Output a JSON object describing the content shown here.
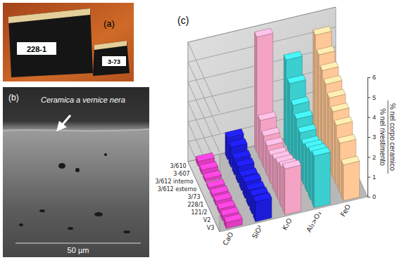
{
  "chart_data": {
    "type": "bar",
    "title": "(c)",
    "ylabel": {
      "numerator": "% nel rivestimento",
      "denominator": "% nel corpo ceramico"
    },
    "categories": [
      "3/610",
      "3-607",
      "3/612 interno",
      "3/612 esterno",
      "3/73",
      "228/1",
      "121/2",
      "V2",
      "V3"
    ],
    "series": [
      {
        "name": "CaO",
        "color": "#e03cc0",
        "values": [
          0.25,
          0.2,
          0.15,
          0.1,
          0.15,
          0.2,
          0.2,
          0.25,
          0.3
        ]
      },
      {
        "name": "SiO²",
        "color": "#1c1cd8",
        "values": [
          1.1,
          1.0,
          0.8,
          0.8,
          0.7,
          0.8,
          0.8,
          0.9,
          1.0
        ]
      },
      {
        "name": "K₂O",
        "color": "#f4a3c4",
        "values": [
          5.8,
          2.0,
          1.6,
          1.5,
          1.4,
          1.6,
          1.8,
          2.0,
          2.3
        ]
      },
      {
        "name": "Al₂>O₃",
        "color": "#3ccfd0",
        "values": [
          4.3,
          3.5,
          2.8,
          2.5,
          2.2,
          2.0,
          2.2,
          2.4,
          2.6
        ]
      },
      {
        "name": "FeO",
        "color": "#ffc896",
        "values": [
          5.2,
          4.6,
          4.2,
          3.9,
          3.6,
          3.3,
          3.0,
          2.5,
          1.8
        ]
      }
    ],
    "ylim": [
      0,
      6
    ],
    "yticks": [
      0,
      1,
      2,
      3,
      4,
      5,
      6
    ],
    "grid": true
  },
  "panels": {
    "a": {
      "label": "(a)",
      "tags": [
        "228-1",
        "3-73"
      ]
    },
    "b": {
      "label": "(b)",
      "caption": "Ceramica a vernice nera",
      "scale_bar": "50 µm"
    }
  }
}
